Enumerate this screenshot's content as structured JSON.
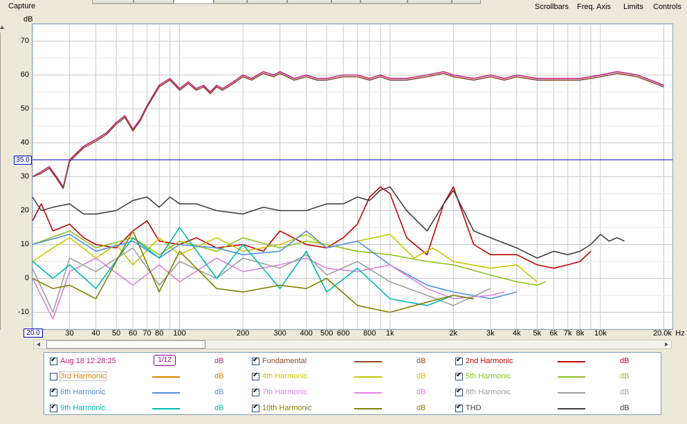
{
  "app": {
    "capture_label": "Capture"
  },
  "menu": {
    "scrollbars": "Scrollbars",
    "freq_axis": "Freq. Axis",
    "limits": "Limits",
    "controls": "Controls"
  },
  "chart_data": {
    "type": "line",
    "x_scale": "log",
    "xlim": [
      20,
      22000
    ],
    "ylim": [
      -15,
      75
    ],
    "grid": true,
    "ylabel": "dB",
    "xlabel_unit": "Hz",
    "y_ticks": [
      "70",
      "60",
      "50",
      "40",
      "30",
      "20",
      "10",
      "0",
      "-10"
    ],
    "x_tick_labels": [
      {
        "v": 30,
        "t": "30"
      },
      {
        "v": 40,
        "t": "40"
      },
      {
        "v": 50,
        "t": "50"
      },
      {
        "v": 60,
        "t": "60"
      },
      {
        "v": 70,
        "t": "70"
      },
      {
        "v": 80,
        "t": "80"
      },
      {
        "v": 100,
        "t": "100"
      },
      {
        "v": 200,
        "t": "200"
      },
      {
        "v": 300,
        "t": "300"
      },
      {
        "v": 400,
        "t": "400"
      },
      {
        "v": 500,
        "t": "500"
      },
      {
        "v": 600,
        "t": "600"
      },
      {
        "v": 800,
        "t": "800"
      },
      {
        "v": 1000,
        "t": "1k"
      },
      {
        "v": 2000,
        "t": "2k"
      },
      {
        "v": 3000,
        "t": "3k"
      },
      {
        "v": 4000,
        "t": "4k"
      },
      {
        "v": 5000,
        "t": "5k"
      },
      {
        "v": 6000,
        "t": "6k"
      },
      {
        "v": 7000,
        "t": "7k"
      },
      {
        "v": 8000,
        "t": "8k"
      },
      {
        "v": 10000,
        "t": "10k"
      },
      {
        "v": 20000,
        "t": "20.0k"
      }
    ],
    "y_limit_line": 35.0,
    "y_limit_label": "35.0",
    "x_limit_label": "20.0",
    "series": [
      {
        "name": "Aug 18 12:28:25",
        "color": "#c0207f",
        "x": [
          20,
          22,
          24,
          26,
          28,
          30,
          35,
          40,
          45,
          50,
          55,
          60,
          65,
          70,
          80,
          90,
          100,
          110,
          120,
          130,
          140,
          150,
          160,
          180,
          200,
          220,
          250,
          280,
          300,
          350,
          400,
          450,
          500,
          600,
          700,
          800,
          900,
          1000,
          1200,
          1500,
          1800,
          2000,
          2500,
          3000,
          3500,
          4000,
          5000,
          6000,
          7000,
          8000,
          10000,
          12000,
          15000,
          20000
        ],
        "y": [
          30,
          31.5,
          33,
          30,
          27,
          35,
          39,
          41,
          43,
          46,
          48,
          44,
          47,
          51,
          57,
          59,
          56,
          58,
          56,
          57,
          55,
          57,
          56,
          58,
          60,
          59,
          61,
          60,
          61,
          59,
          60,
          59,
          59,
          60,
          60,
          59,
          60,
          59,
          59,
          60,
          61,
          60,
          59,
          60,
          59,
          60,
          59,
          59,
          59,
          59,
          60,
          61,
          60,
          57
        ]
      },
      {
        "name": "Fundamental",
        "color": "#8b4a2b",
        "x": [
          20,
          22,
          24,
          26,
          28,
          30,
          35,
          40,
          45,
          50,
          55,
          60,
          65,
          70,
          80,
          90,
          100,
          110,
          120,
          130,
          140,
          150,
          160,
          180,
          200,
          220,
          250,
          280,
          300,
          350,
          400,
          450,
          500,
          600,
          700,
          800,
          900,
          1000,
          1200,
          1500,
          1800,
          2000,
          2500,
          3000,
          3500,
          4000,
          5000,
          6000,
          7000,
          8000,
          10000,
          12000,
          15000,
          20000
        ],
        "y": [
          30,
          31,
          32.5,
          29.5,
          26.5,
          34.5,
          38.5,
          40.5,
          42.5,
          45.5,
          47.5,
          43.5,
          46.5,
          50.5,
          56.5,
          58.5,
          55.5,
          57.5,
          55.5,
          56.5,
          54.5,
          56.5,
          55.5,
          57.5,
          59.5,
          58.5,
          60.5,
          59.5,
          60.5,
          58.5,
          59.5,
          58.5,
          58.5,
          59.5,
          59.5,
          58.5,
          59.5,
          58.5,
          58.5,
          59.5,
          60.5,
          59.5,
          58.5,
          59.5,
          58.5,
          59.5,
          58.5,
          58.5,
          58.5,
          58.5,
          59.5,
          60.5,
          59.5,
          56.5
        ]
      },
      {
        "name": "2nd Harmonic",
        "color": "#c00000",
        "x": [
          20,
          22,
          25,
          30,
          35,
          40,
          50,
          60,
          70,
          80,
          100,
          120,
          150,
          200,
          250,
          300,
          400,
          500,
          600,
          700,
          800,
          900,
          1000,
          1200,
          1500,
          1800,
          2000,
          2500,
          3000,
          4000,
          5000,
          6000,
          7000,
          8000,
          9000
        ],
        "y": [
          17,
          22,
          14,
          16,
          12,
          10,
          9,
          14,
          17,
          11,
          10,
          12,
          9,
          10,
          8,
          14,
          10,
          9,
          12,
          16,
          24,
          27,
          25,
          12,
          7,
          22,
          27,
          10,
          7,
          7,
          4,
          3,
          4,
          5,
          8
        ]
      },
      {
        "name": "3rd Harmonic",
        "color": "#e08000",
        "x": [],
        "y": []
      },
      {
        "name": "4th Harmonic",
        "color": "#c8c800",
        "x": [
          20,
          25,
          30,
          40,
          50,
          60,
          80,
          100,
          150,
          200,
          300,
          400,
          500,
          700,
          1000,
          1300,
          1600,
          2000,
          3000,
          4000,
          5000
        ],
        "y": [
          5,
          9,
          12,
          6,
          10,
          4,
          12,
          7,
          12,
          8,
          10,
          13,
          9,
          11,
          13,
          6,
          9,
          5,
          3,
          4,
          -1
        ]
      },
      {
        "name": "5th Harmonic",
        "color": "#90c020",
        "x": [
          20,
          30,
          40,
          60,
          80,
          100,
          150,
          200,
          300,
          400,
          500,
          700,
          1000,
          1500,
          2000,
          3000,
          4000,
          5000,
          5500
        ],
        "y": [
          10,
          14,
          9,
          12,
          7,
          11,
          8,
          12,
          9,
          11,
          10,
          8,
          7,
          5,
          4,
          1,
          -1,
          -2,
          -1
        ]
      },
      {
        "name": "6th Harmonic",
        "color": "#5090e0",
        "x": [
          20,
          30,
          40,
          60,
          80,
          100,
          150,
          200,
          300,
          400,
          500,
          700,
          1000,
          1500,
          2000,
          3000,
          4000
        ],
        "y": [
          10,
          13,
          8,
          11,
          6,
          10,
          9,
          7,
          8,
          14,
          9,
          11,
          4,
          -2,
          -4,
          -6,
          -4
        ]
      },
      {
        "name": "7th Harmonic",
        "color": "#e080e0",
        "x": [
          20,
          25,
          30,
          40,
          60,
          80,
          100,
          150,
          200,
          300,
          400,
          500,
          700,
          1000,
          1500,
          2000,
          3000,
          3500
        ],
        "y": [
          0,
          -12,
          2,
          6,
          -2,
          4,
          -1,
          6,
          2,
          4,
          6,
          3,
          2,
          4,
          -3,
          -6,
          -5,
          -4
        ]
      },
      {
        "name": "8th Harmonic",
        "color": "#a0a0a0",
        "x": [
          20,
          25,
          30,
          40,
          60,
          80,
          100,
          150,
          200,
          300,
          400,
          500,
          700,
          1000,
          1500,
          2000,
          3000
        ],
        "y": [
          3,
          -10,
          6,
          2,
          9,
          -2,
          5,
          0,
          6,
          3,
          7,
          1,
          5,
          -1,
          -5,
          -8,
          -3
        ]
      },
      {
        "name": "9th Harmonic",
        "color": "#00b8b8",
        "x": [
          20,
          25,
          30,
          40,
          60,
          80,
          100,
          150,
          200,
          300,
          400,
          500,
          700,
          1000,
          1500,
          2000,
          2500
        ],
        "y": [
          5,
          0,
          4,
          -3,
          12,
          6,
          15,
          0,
          10,
          -3,
          8,
          -4,
          3,
          -6,
          -8,
          -5,
          -6
        ]
      },
      {
        "name": "10th Harmonic",
        "color": "#808000",
        "x": [
          20,
          25,
          30,
          40,
          60,
          80,
          100,
          150,
          200,
          300,
          400,
          500,
          700,
          1000,
          1500,
          2000,
          2500
        ],
        "y": [
          0,
          -3,
          -2,
          -6,
          14,
          -4,
          8,
          -3,
          -4,
          -2,
          -3,
          0,
          -8,
          -10,
          -7,
          -5,
          -6
        ]
      },
      {
        "name": "THD",
        "color": "#404040",
        "x": [
          20,
          22,
          25,
          30,
          35,
          40,
          50,
          60,
          70,
          80,
          90,
          100,
          120,
          150,
          200,
          250,
          300,
          400,
          500,
          600,
          700,
          800,
          900,
          1000,
          1200,
          1500,
          1800,
          2000,
          2500,
          3000,
          4000,
          5000,
          6000,
          7000,
          8000,
          9000,
          10000,
          11000,
          12000,
          13000
        ],
        "y": [
          24,
          20,
          21,
          22,
          19,
          19,
          20,
          23,
          24,
          21,
          24,
          22,
          22,
          20,
          19,
          21,
          20,
          20,
          22,
          22,
          24,
          23,
          26,
          27,
          20,
          14,
          22,
          26,
          14,
          12,
          9,
          6,
          8,
          7,
          8,
          10,
          13,
          11,
          12,
          11
        ]
      }
    ]
  },
  "legend": {
    "rows": [
      {
        "name": "Aug 18 12:28:25",
        "checked": true,
        "color": "#c0207f",
        "unit": "dB",
        "smoothing": "1/12"
      },
      {
        "name": "Fundamental",
        "checked": true,
        "color": "#8b4a2b",
        "unit": "dB"
      },
      {
        "name": "2nd Harmonic",
        "checked": true,
        "color": "#c00000",
        "unit": "dB"
      },
      {
        "name": "3rd Harmonic",
        "checked": false,
        "color": "#e08000",
        "unit": "dB"
      },
      {
        "name": "4th Harmonic",
        "checked": true,
        "color": "#c8c800",
        "unit": "dB"
      },
      {
        "name": "5th Harmonic",
        "checked": true,
        "color": "#90c020",
        "unit": "dB"
      },
      {
        "name": "6th Harmonic",
        "checked": true,
        "color": "#5090e0",
        "unit": "dB"
      },
      {
        "name": "7th Harmonic",
        "checked": true,
        "color": "#e080e0",
        "unit": "dB"
      },
      {
        "name": "8th Harmonic",
        "checked": true,
        "color": "#a0a0a0",
        "unit": "dB"
      },
      {
        "name": "9th Harmonic",
        "checked": true,
        "color": "#00b8b8",
        "unit": "dB"
      },
      {
        "name": "10th Harmonic",
        "checked": true,
        "color": "#808000",
        "unit": "dB"
      },
      {
        "name": "THD",
        "checked": true,
        "color": "#404040",
        "unit": "dB"
      }
    ]
  }
}
